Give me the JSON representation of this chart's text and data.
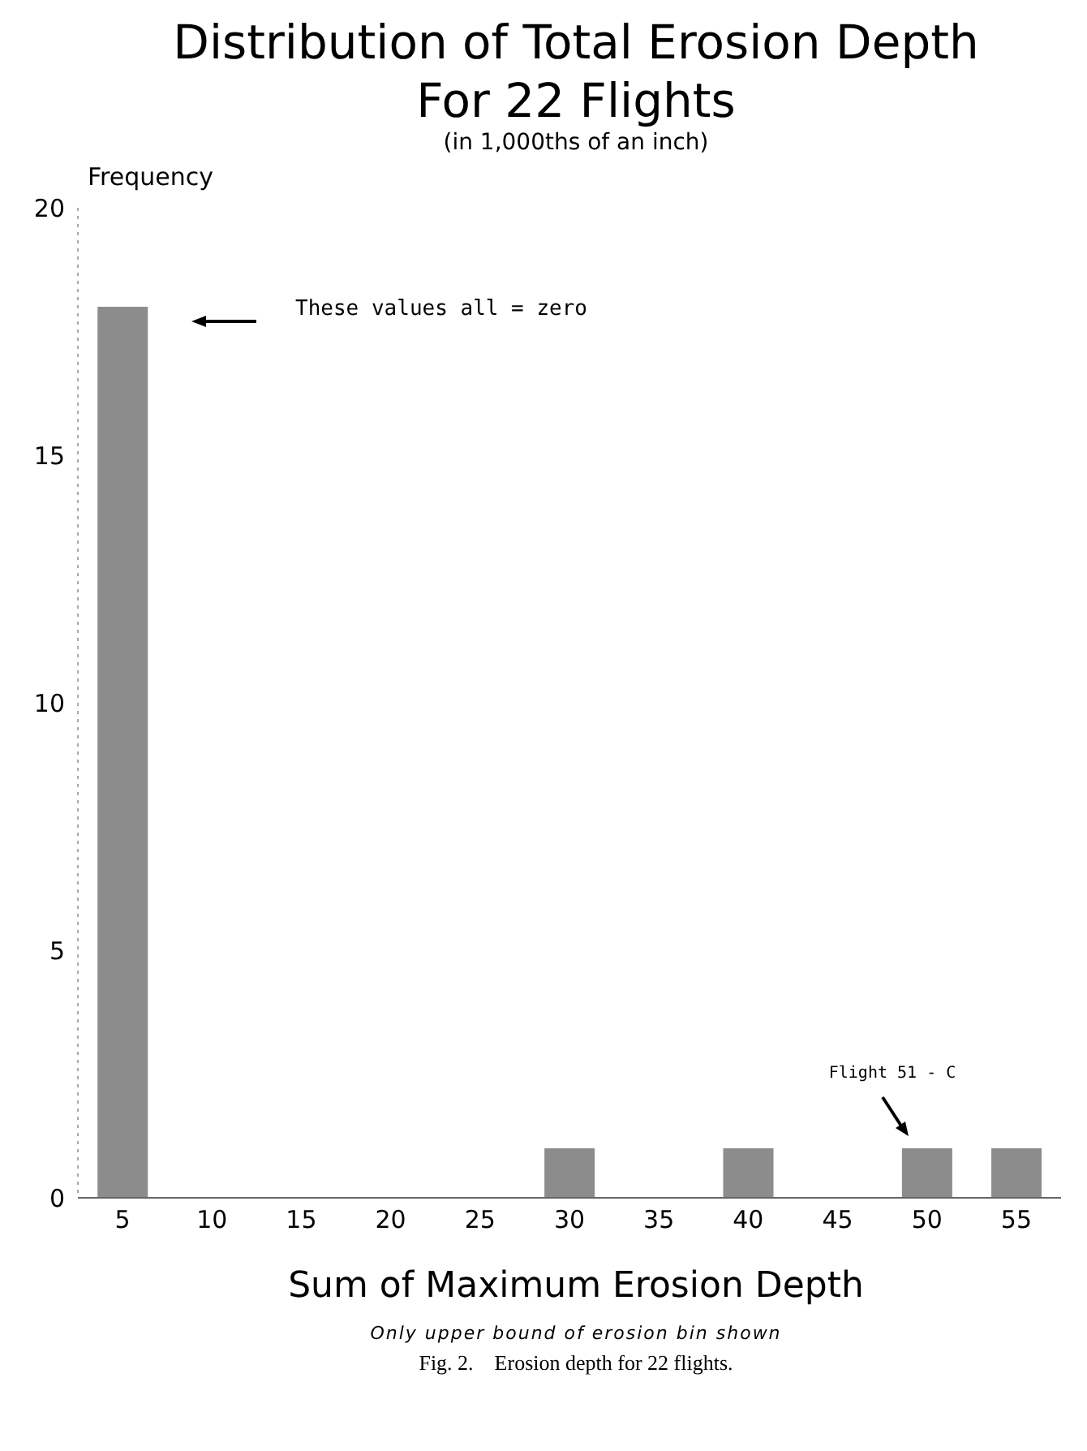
{
  "chart_data": {
    "type": "bar",
    "title": "Distribution of Total Erosion Depth\nFor 22 Flights",
    "subtitle": "(in 1,000ths of an inch)",
    "xlabel": "Sum of Maximum Erosion Depth",
    "ylabel": "Frequency",
    "categories": [
      "5",
      "10",
      "15",
      "20",
      "25",
      "30",
      "35",
      "40",
      "45",
      "50",
      "55"
    ],
    "values": [
      18,
      0,
      0,
      0,
      0,
      1,
      0,
      1,
      0,
      1,
      1
    ],
    "color": "#8c8c8c",
    "ylim": [
      0,
      20
    ],
    "yticks": [
      0,
      5,
      10,
      15,
      20
    ],
    "grid": false,
    "annotations": [
      "These values all = zero",
      "Flight 51 - C",
      "Only upper bound of erosion bin shown",
      "Fig. 2.    Erosion depth for 22 flights."
    ]
  }
}
